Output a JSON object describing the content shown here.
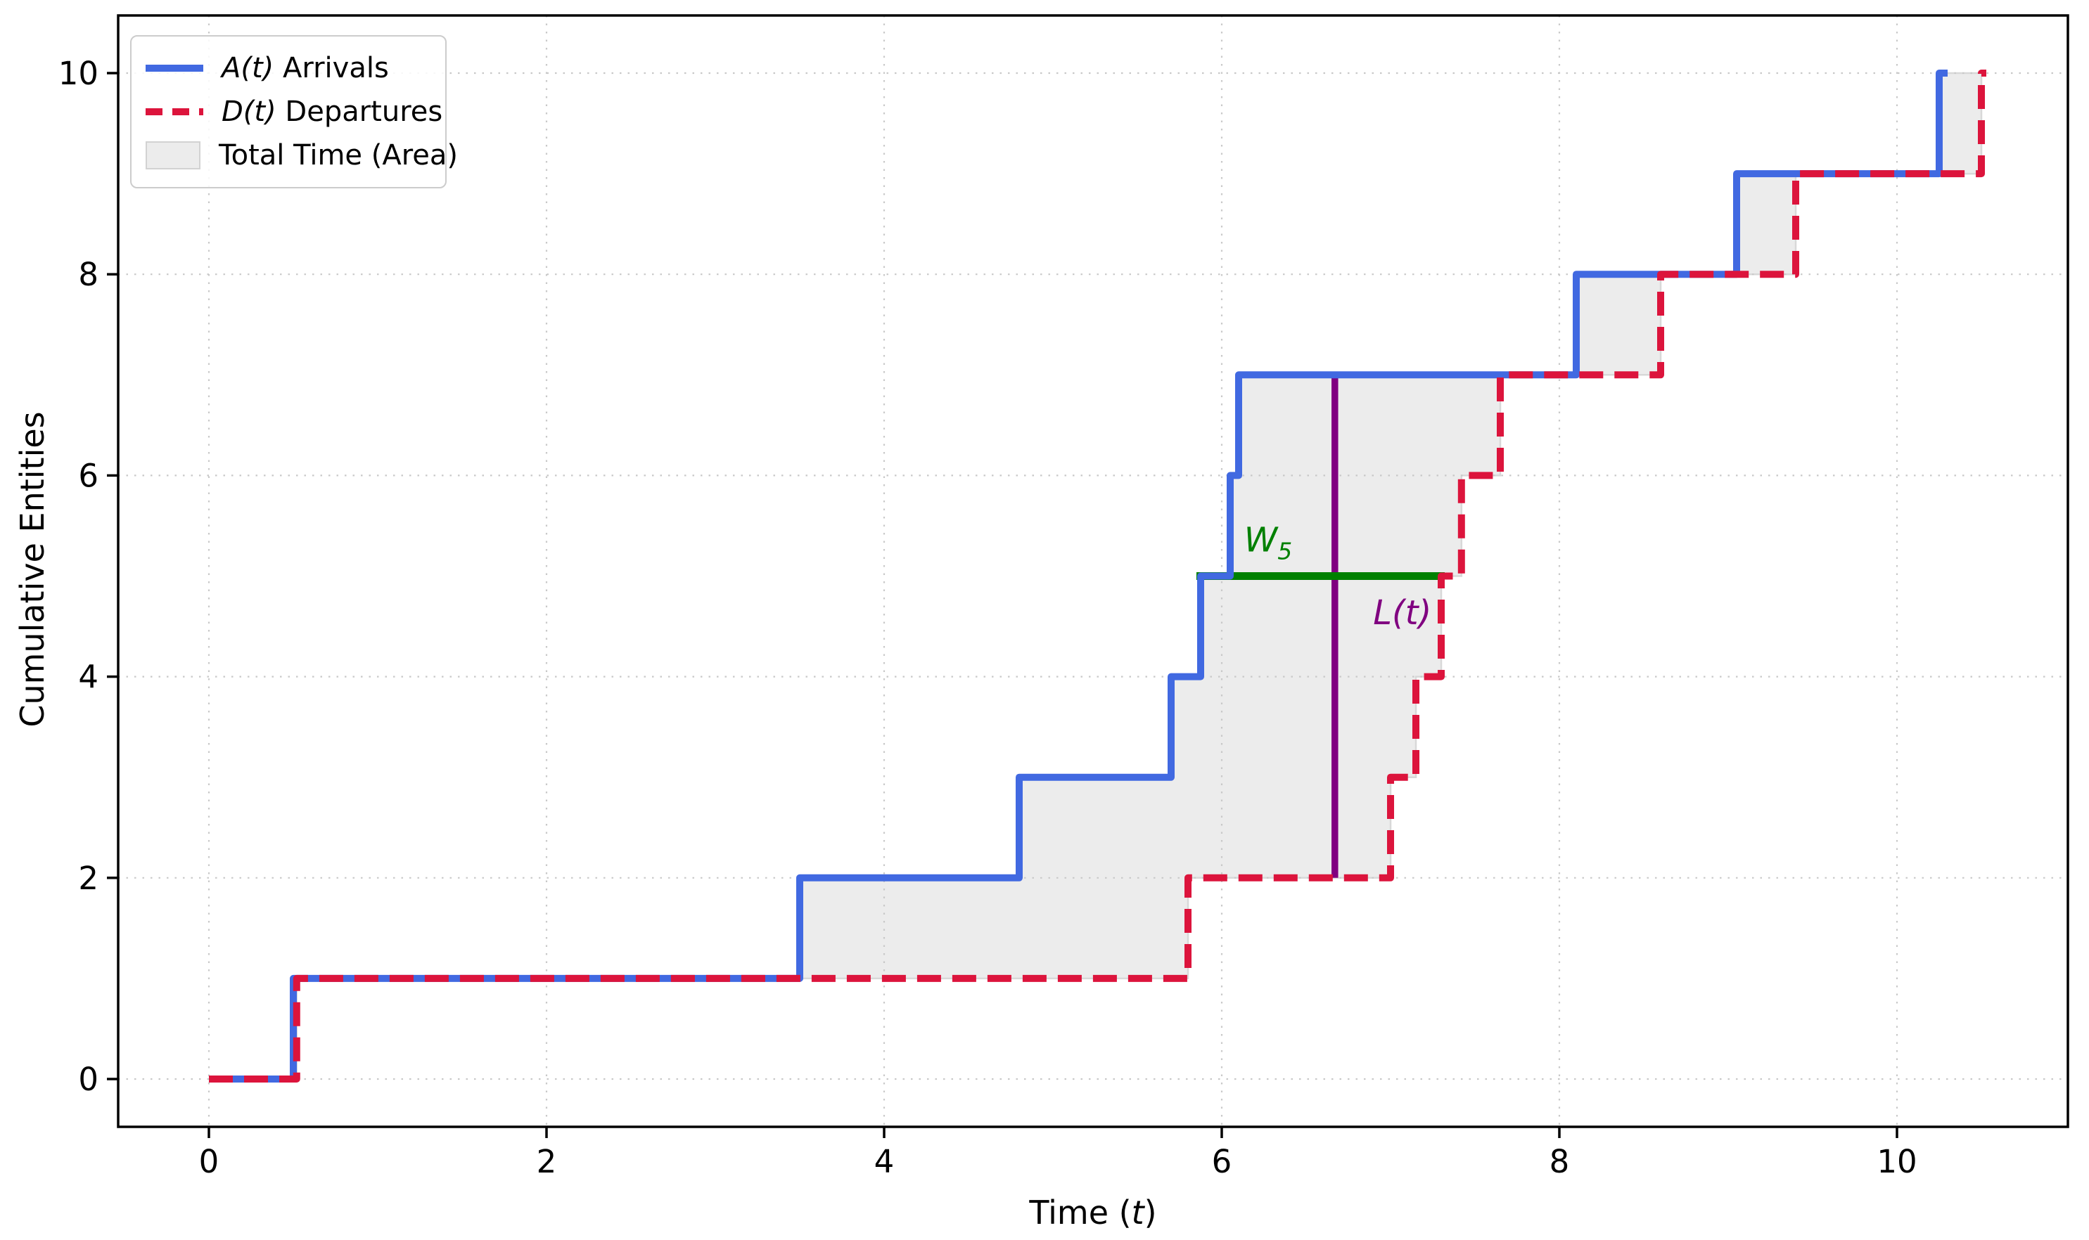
{
  "chart_data": {
    "type": "step",
    "title": "",
    "xlabel": "Time (t)",
    "ylabel": "Cumulative Entities",
    "xticks": [
      0,
      2,
      4,
      6,
      8,
      10
    ],
    "yticks": [
      0,
      2,
      4,
      6,
      8,
      10
    ],
    "xlim": [
      -0.54,
      11.0
    ],
    "ylim": [
      -0.48,
      10.6
    ],
    "grid": true,
    "legend_position": "upper left",
    "series": [
      {
        "name": "A(t) Arrivals",
        "type": "step-post",
        "color": "#4169e1",
        "linestyle": "solid",
        "start_level": 0,
        "event_times": [
          0.5,
          3.5,
          4.8,
          5.7,
          5.875,
          6.05,
          6.1,
          8.1,
          9.05,
          10.25
        ],
        "levels": [
          1,
          2,
          3,
          4,
          5,
          6,
          7,
          8,
          9,
          10
        ]
      },
      {
        "name": "D(t) Departures",
        "type": "step-post",
        "color": "#dc143c",
        "linestyle": "dashed",
        "start_level": 0,
        "event_times": [
          0.52,
          5.8,
          7.0,
          7.15,
          7.3,
          7.42,
          7.65,
          8.6,
          9.4,
          10.5
        ],
        "levels": [
          1,
          2,
          3,
          4,
          5,
          6,
          7,
          8,
          9,
          10
        ]
      }
    ],
    "fill_between": {
      "label": "Total Time (Area)",
      "color": "#ececec",
      "edge_color": "#d8d8d8",
      "end_time": 10.5
    },
    "annotations": [
      {
        "id": "w5",
        "label": "W_5",
        "type": "hline-segment",
        "y": 5,
        "x1": 5.875,
        "x2": 7.3,
        "color": "#008000"
      },
      {
        "id": "lt",
        "label": "L(t)",
        "type": "vline-segment",
        "x": 6.67,
        "y1": 2,
        "y2": 7,
        "color": "#800080"
      }
    ]
  },
  "legend": {
    "items": [
      {
        "math": "A(t)",
        "text": " Arrivals",
        "sample": "solid-blue-line"
      },
      {
        "math": "D(t)",
        "text": " Departures",
        "sample": "dashed-red-line"
      },
      {
        "math": "",
        "text": "Total Time (Area)",
        "sample": "gray-patch"
      }
    ]
  },
  "labels": {
    "xlabel_pre": "Time (",
    "xlabel_var": "t",
    "xlabel_post": ")",
    "ylabel": "Cumulative Entities",
    "w_var": "W",
    "w_sub": "5",
    "l_label": "L(t)"
  }
}
